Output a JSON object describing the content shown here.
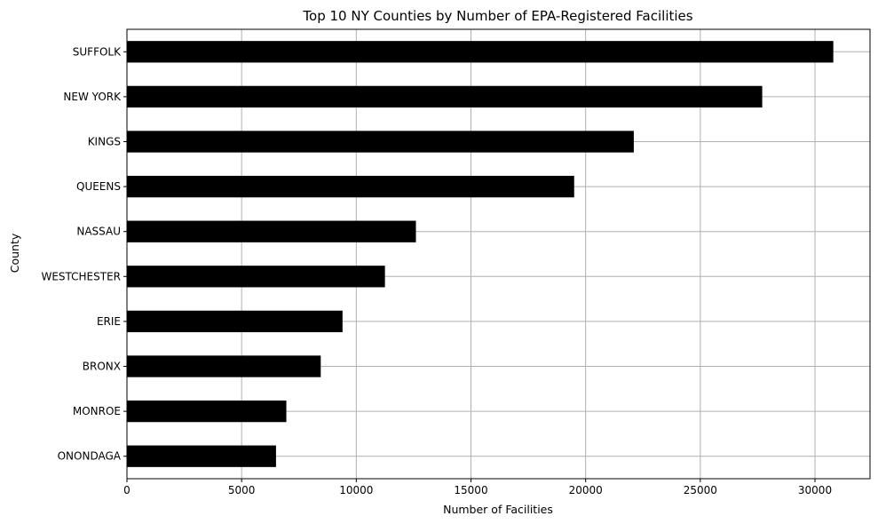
{
  "chart_data": {
    "type": "bar",
    "orientation": "horizontal",
    "title": "Top 10 NY Counties by Number of EPA-Registered Facilities",
    "xlabel": "Number of Facilities",
    "ylabel": "County",
    "categories": [
      "SUFFOLK",
      "NEW YORK",
      "KINGS",
      "QUEENS",
      "NASSAU",
      "WESTCHESTER",
      "ERIE",
      "BRONX",
      "MONROE",
      "ONONDAGA"
    ],
    "values": [
      30800,
      27700,
      22100,
      19500,
      12600,
      11250,
      9400,
      8450,
      6950,
      6500
    ],
    "xlim": [
      0,
      32400
    ],
    "xticks": [
      0,
      5000,
      10000,
      15000,
      20000,
      25000,
      30000
    ],
    "xtick_labels": [
      "0",
      "5000",
      "10000",
      "15000",
      "20000",
      "25000",
      "30000"
    ],
    "grid": true,
    "bar_color": "#000000",
    "grid_color": "#b0b0b0"
  }
}
